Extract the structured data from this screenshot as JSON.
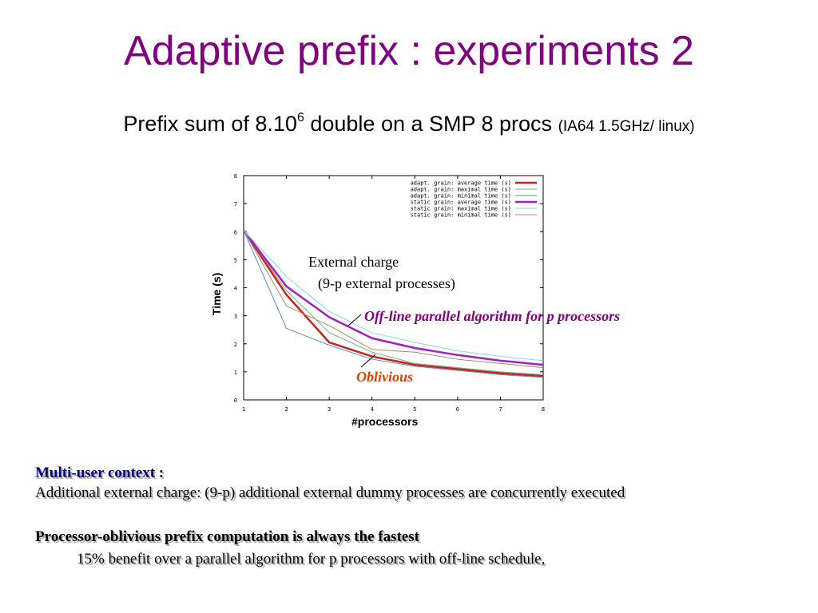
{
  "slide": {
    "title": "Adaptive prefix : experiments 2",
    "subtitle_main": "Prefix sum of 8.10",
    "subtitle_sup": "6",
    "subtitle_rest": " double on a SMP 8 procs ",
    "subtitle_small": "(IA64 1.5GHz/ linux)"
  },
  "annotations": {
    "external_charge_line1": "External charge",
    "external_charge_line2": "(9-p external processes)",
    "offline": "Off-line parallel algorithm for p processors",
    "oblivious": "Oblivious"
  },
  "notes": {
    "multi_user_label": "Multi-user context",
    "multi_user_colon": " :",
    "additional_charge": "Additional external charge: (9-p) additional external dummy processes are concurrently executed",
    "oblivious_fastest": "Processor-oblivious prefix computation is always the fastest",
    "benefit": "15%  benefit over a parallel algorithm for p processors with off-line schedule,"
  },
  "chart_data": {
    "type": "line",
    "xlabel": "#processors",
    "ylabel": "Time (s)",
    "xlim": [
      1,
      8
    ],
    "ylim": [
      0,
      8
    ],
    "x_ticks": [
      "1",
      "2",
      "3",
      "4",
      "5",
      "6",
      "7",
      "8"
    ],
    "y_ticks": [
      "0",
      "1",
      "2",
      "3",
      "4",
      "5",
      "6",
      "7",
      "8"
    ],
    "legend_position": "top-right",
    "grid": false,
    "x": [
      1,
      2,
      3,
      4,
      5,
      6,
      7,
      8
    ],
    "series": [
      {
        "name": "adapt. grain: average time (s)",
        "color": "#cc2020",
        "width": 2.5,
        "values": [
          6.05,
          3.75,
          2.05,
          1.55,
          1.25,
          1.1,
          0.95,
          0.85
        ]
      },
      {
        "name": "adapt. grain: maximal time (s)",
        "color": "#70b070",
        "width": 1,
        "values": [
          6.05,
          3.9,
          2.4,
          1.7,
          1.3,
          1.15,
          1.0,
          0.9
        ]
      },
      {
        "name": "adapt. grain: minimal time (s)",
        "color": "#5090d0",
        "width": 1,
        "values": [
          6.05,
          2.55,
          1.95,
          1.45,
          1.2,
          1.05,
          0.9,
          0.8
        ]
      },
      {
        "name": "static grain: average time (s)",
        "color": "#a020c0",
        "width": 2.5,
        "values": [
          6.05,
          4.05,
          2.95,
          2.2,
          1.85,
          1.6,
          1.4,
          1.25
        ]
      },
      {
        "name": "static grain: maximal time (s)",
        "color": "#80d8f0",
        "width": 1,
        "values": [
          6.05,
          4.4,
          3.15,
          2.4,
          2.05,
          1.75,
          1.55,
          1.4
        ]
      },
      {
        "name": "static grain: minimal time (s)",
        "color": "#a09060",
        "width": 1,
        "values": [
          6.05,
          3.35,
          2.65,
          1.8,
          1.7,
          1.45,
          1.3,
          1.15
        ]
      }
    ]
  }
}
